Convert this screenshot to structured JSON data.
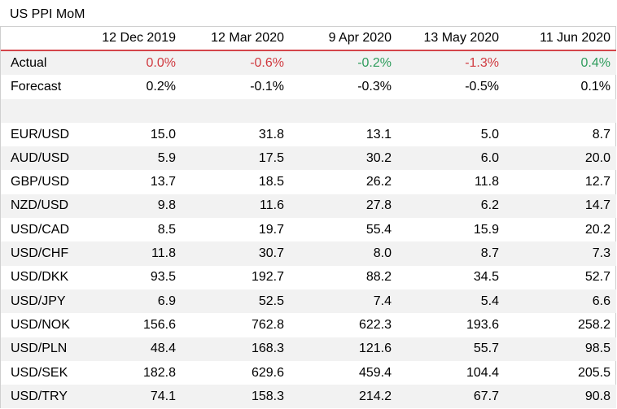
{
  "title": "US PPI MoM",
  "columns": [
    "",
    "12 Dec 2019",
    "12 Mar 2020",
    "9 Apr 2020",
    "13 May 2020",
    "11 Jun 2020"
  ],
  "colors": {
    "negative": "#d0393f",
    "positive": "#2e9c5c",
    "header_rule": "#d4454b",
    "row_shade": "#f2f2f2"
  },
  "rows": [
    {
      "label": "Actual",
      "values": [
        "0.0%",
        "-0.6%",
        "-0.2%",
        "-1.3%",
        "0.4%"
      ],
      "tones": [
        "zero",
        "neg",
        "pos",
        "neg",
        "pos"
      ]
    },
    {
      "label": "Forecast",
      "values": [
        "0.2%",
        "-0.1%",
        "-0.3%",
        "-0.5%",
        "0.1%"
      ]
    },
    {
      "label": "",
      "values": [
        "",
        "",
        "",
        "",
        ""
      ]
    },
    {
      "label": "EUR/USD",
      "values": [
        "15.0",
        "31.8",
        "13.1",
        "5.0",
        "8.7"
      ]
    },
    {
      "label": "AUD/USD",
      "values": [
        "5.9",
        "17.5",
        "30.2",
        "6.0",
        "20.0"
      ]
    },
    {
      "label": "GBP/USD",
      "values": [
        "13.7",
        "18.5",
        "26.2",
        "11.8",
        "12.7"
      ]
    },
    {
      "label": "NZD/USD",
      "values": [
        "9.8",
        "11.6",
        "27.8",
        "6.2",
        "14.7"
      ]
    },
    {
      "label": "USD/CAD",
      "values": [
        "8.5",
        "19.7",
        "55.4",
        "15.9",
        "20.2"
      ]
    },
    {
      "label": "USD/CHF",
      "values": [
        "11.8",
        "30.7",
        "8.0",
        "8.7",
        "7.3"
      ]
    },
    {
      "label": "USD/DKK",
      "values": [
        "93.5",
        "192.7",
        "88.2",
        "34.5",
        "52.7"
      ]
    },
    {
      "label": "USD/JPY",
      "values": [
        "6.9",
        "52.5",
        "7.4",
        "5.4",
        "6.6"
      ]
    },
    {
      "label": "USD/NOK",
      "values": [
        "156.6",
        "762.8",
        "622.3",
        "193.6",
        "258.2"
      ]
    },
    {
      "label": "USD/PLN",
      "values": [
        "48.4",
        "168.3",
        "121.6",
        "55.7",
        "98.5"
      ]
    },
    {
      "label": "USD/SEK",
      "values": [
        "182.8",
        "629.6",
        "459.4",
        "104.4",
        "205.5"
      ]
    },
    {
      "label": "USD/TRY",
      "values": [
        "74.1",
        "158.3",
        "214.2",
        "67.7",
        "90.8"
      ]
    }
  ]
}
